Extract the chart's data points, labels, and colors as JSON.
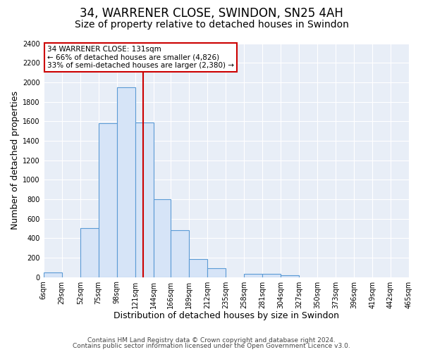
{
  "title": "34, WARRENER CLOSE, SWINDON, SN25 4AH",
  "subtitle": "Size of property relative to detached houses in Swindon",
  "xlabel": "Distribution of detached houses by size in Swindon",
  "ylabel": "Number of detached properties",
  "bar_edges": [
    6,
    29,
    52,
    75,
    98,
    121,
    144,
    166,
    189,
    212,
    235,
    258,
    281,
    304,
    327,
    350,
    373,
    396,
    419,
    442,
    465
  ],
  "bar_heights": [
    50,
    0,
    500,
    1580,
    1950,
    1590,
    800,
    480,
    185,
    90,
    0,
    30,
    30,
    20,
    0,
    0,
    0,
    0,
    0,
    0
  ],
  "bar_facecolor": "#d6e4f7",
  "bar_edgecolor": "#5b9bd5",
  "vline_x": 131,
  "vline_color": "#cc0000",
  "annotation_title": "34 WARRENER CLOSE: 131sqm",
  "annotation_line1": "← 66% of detached houses are smaller (4,826)",
  "annotation_line2": "33% of semi-detached houses are larger (2,380) →",
  "annotation_box_edgecolor": "#cc0000",
  "annotation_box_facecolor": "#ffffff",
  "ylim": [
    0,
    2400
  ],
  "yticks": [
    0,
    200,
    400,
    600,
    800,
    1000,
    1200,
    1400,
    1600,
    1800,
    2000,
    2200,
    2400
  ],
  "tick_labels": [
    "6sqm",
    "29sqm",
    "52sqm",
    "75sqm",
    "98sqm",
    "121sqm",
    "144sqm",
    "166sqm",
    "189sqm",
    "212sqm",
    "235sqm",
    "258sqm",
    "281sqm",
    "304sqm",
    "327sqm",
    "350sqm",
    "373sqm",
    "396sqm",
    "419sqm",
    "442sqm",
    "465sqm"
  ],
  "footer1": "Contains HM Land Registry data © Crown copyright and database right 2024.",
  "footer2": "Contains public sector information licensed under the Open Government Licence v3.0.",
  "background_color": "#ffffff",
  "plot_bg_color": "#e8eef7",
  "grid_color": "#ffffff",
  "title_fontsize": 12,
  "subtitle_fontsize": 10,
  "axis_label_fontsize": 9,
  "tick_fontsize": 7,
  "footer_fontsize": 6.5
}
